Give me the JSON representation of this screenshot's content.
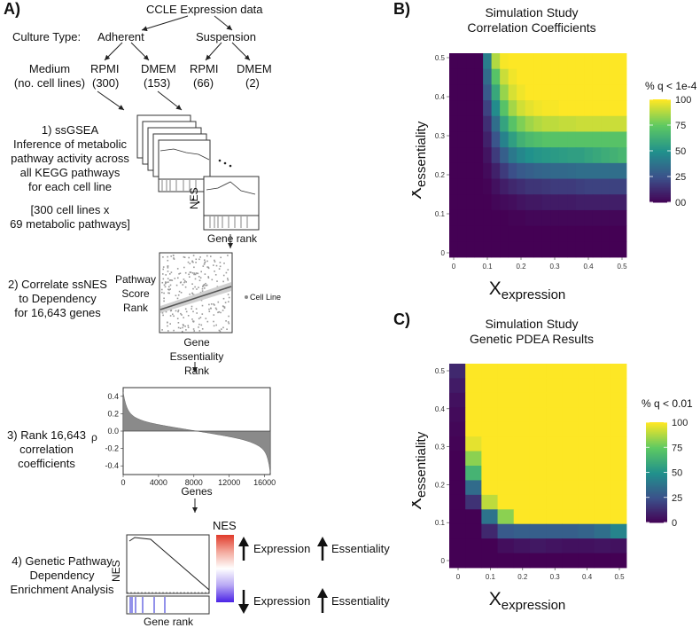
{
  "panel_a": {
    "letter": "A)",
    "ccle_title": "CCLE Expression data",
    "culture_type_label": "Culture Type:",
    "adherent": "Adherent",
    "suspension": "Suspension",
    "medium_label": "Medium",
    "cell_lines_label": "(no. cell lines)",
    "media": [
      {
        "name": "RPMI",
        "count": "(300)"
      },
      {
        "name": "DMEM",
        "count": "(153)"
      },
      {
        "name": "RPMI",
        "count": "(66)"
      },
      {
        "name": "DMEM",
        "count": "(2)"
      }
    ],
    "step1": [
      "1) ssGSEA",
      "Inference of metabolic",
      "pathway activity across",
      "all KEGG pathways",
      "for each cell line"
    ],
    "step1_matrix": [
      "[300 cell lines x",
      "69 metabolic pathways]"
    ],
    "nes_label": "NES",
    "gene_rank_label": "Gene rank",
    "step2": [
      "2) Correlate ssNES",
      "to Dependency",
      "for 16,643 genes"
    ],
    "pathway_score_rank": [
      "Pathway",
      "Score",
      "Rank"
    ],
    "cell_line_legend": "Cell Line",
    "gene_essentiality_rank": [
      "Gene",
      "Essentiality",
      "Rank"
    ],
    "step3": [
      "3) Rank 16,643",
      "correlation",
      "coefficients"
    ],
    "rho_label": "ρ",
    "genes_label": "Genes",
    "step4": [
      "4) Genetic Pathway",
      "Dependency",
      "Enrichment Analysis"
    ],
    "nes_colorbar_title": "NES",
    "expression_label": "Expression",
    "essentiality_label": "Essentiality",
    "bottom_gene_rank": "Gene rank",
    "nes_axis": "NES"
  },
  "panel_b": {
    "letter": "B)",
    "title": [
      "Simulation Study",
      "Correlation Coefficients"
    ],
    "legend_title": "% q < 1e-4",
    "legend_ticks": [
      "100",
      "75",
      "50",
      "25",
      "00"
    ]
  },
  "panel_c": {
    "letter": "C)",
    "title": [
      "Simulation Study",
      "Genetic PDEA Results"
    ],
    "legend_title": "% q < 0.01",
    "legend_ticks": [
      "100",
      "75",
      "50",
      "25",
      "0"
    ]
  },
  "heatmap_axes": {
    "x_main": "X",
    "x_sub": "expression",
    "y_main": "X",
    "y_sub": "essentiality",
    "ticks": [
      "0",
      "0.1",
      "0.2",
      "0.3",
      "0.4",
      "0.5"
    ]
  },
  "chart_data": [
    {
      "type": "bar",
      "title": "",
      "xlabel": "Genes",
      "ylabel": "ρ",
      "xlim": [
        0,
        16643
      ],
      "ylim": [
        -0.5,
        0.5
      ],
      "x_ticks": [
        "0",
        "4000",
        "8000",
        "12000",
        "16000"
      ],
      "y_ticks": [
        "0.4",
        "0.2",
        "0.0",
        "-0.2",
        "-0.4"
      ],
      "shape": "sorted correlation coefficients, from about 0.45 down to about -0.5"
    },
    {
      "type": "heatmap",
      "title": "Simulation Study Correlation Coefficients",
      "xlabel": "Xexpression",
      "ylabel": "Xessentiality",
      "legend": "% q < 1e-4",
      "scale": [
        0,
        100
      ],
      "axis_values": [
        0,
        0.025,
        0.05,
        0.075,
        0.1,
        0.125,
        0.15,
        0.175,
        0.2,
        0.225,
        0.25,
        0.275,
        0.3,
        0.325,
        0.35,
        0.375,
        0.4,
        0.425,
        0.45,
        0.475,
        0.5
      ],
      "rows_top_to_bottom": [
        [
          0,
          0,
          0,
          0,
          42,
          88,
          99,
          100,
          100,
          100,
          100,
          100,
          100,
          100,
          100,
          100,
          100,
          100,
          100,
          100,
          100
        ],
        [
          0,
          0,
          0,
          0,
          35,
          72,
          92,
          98,
          100,
          100,
          100,
          100,
          100,
          100,
          100,
          100,
          100,
          100,
          100,
          100,
          100
        ],
        [
          0,
          0,
          0,
          0,
          28,
          60,
          84,
          94,
          98,
          100,
          100,
          100,
          100,
          100,
          100,
          100,
          100,
          100,
          100,
          100,
          100
        ],
        [
          0,
          0,
          0,
          0,
          20,
          48,
          72,
          86,
          93,
          96,
          98,
          99,
          99,
          100,
          100,
          100,
          100,
          100,
          100,
          100,
          100
        ],
        [
          0,
          0,
          0,
          0,
          14,
          36,
          58,
          72,
          80,
          85,
          88,
          90,
          90,
          91,
          91,
          92,
          92,
          92,
          92,
          92,
          92
        ],
        [
          0,
          0,
          0,
          0,
          10,
          26,
          44,
          56,
          64,
          68,
          70,
          72,
          72,
          72,
          72,
          72,
          72,
          72,
          72,
          72,
          72
        ],
        [
          0,
          0,
          0,
          0,
          6,
          18,
          30,
          40,
          46,
          50,
          52,
          53,
          54,
          55,
          56,
          56,
          58,
          60,
          62,
          64,
          66
        ],
        [
          0,
          0,
          0,
          0,
          3,
          10,
          18,
          24,
          28,
          30,
          32,
          33,
          34,
          34,
          35,
          36,
          36,
          36,
          36,
          36,
          36
        ],
        [
          0,
          0,
          0,
          0,
          1,
          5,
          9,
          12,
          14,
          16,
          16,
          17,
          18,
          18,
          18,
          19,
          20,
          20,
          20,
          20,
          20
        ],
        [
          0,
          0,
          0,
          0,
          0,
          2,
          3,
          4,
          6,
          7,
          7,
          8,
          8,
          8,
          8,
          9,
          9,
          9,
          9,
          9,
          9
        ],
        [
          0,
          0,
          0,
          0,
          0,
          0,
          0,
          1,
          1,
          2,
          2,
          2,
          2,
          2,
          2,
          2,
          2,
          2,
          2,
          2,
          2
        ],
        [
          0,
          0,
          0,
          0,
          0,
          0,
          0,
          0,
          0,
          0,
          0,
          0,
          0,
          0,
          0,
          0,
          0,
          0,
          0,
          0,
          0
        ],
        [
          0,
          0,
          0,
          0,
          0,
          0,
          0,
          0,
          0,
          0,
          0,
          0,
          0,
          0,
          0,
          0,
          0,
          0,
          0,
          0,
          0
        ]
      ]
    },
    {
      "type": "heatmap",
      "title": "Simulation Study Genetic PDEA Results",
      "xlabel": "Xexpression",
      "ylabel": "Xessentiality",
      "legend": "% q < 0.01",
      "scale": [
        0,
        100
      ],
      "axis_values": [
        0,
        0.05,
        0.1,
        0.15,
        0.2,
        0.25,
        0.3,
        0.35,
        0.4,
        0.45,
        0.5
      ],
      "rows_top_to_bottom": [
        [
          12,
          100,
          100,
          100,
          100,
          100,
          100,
          100,
          100,
          100,
          100
        ],
        [
          8,
          100,
          100,
          100,
          100,
          100,
          100,
          100,
          100,
          100,
          100
        ],
        [
          5,
          100,
          100,
          100,
          100,
          100,
          100,
          100,
          100,
          100,
          100
        ],
        [
          3,
          100,
          100,
          100,
          100,
          100,
          100,
          100,
          100,
          100,
          100
        ],
        [
          2,
          100,
          100,
          100,
          100,
          100,
          100,
          100,
          100,
          100,
          100
        ],
        [
          1,
          96,
          100,
          100,
          100,
          100,
          100,
          100,
          100,
          100,
          100
        ],
        [
          0,
          82,
          100,
          100,
          100,
          100,
          100,
          100,
          100,
          100,
          100
        ],
        [
          0,
          65,
          100,
          100,
          100,
          100,
          100,
          100,
          100,
          100,
          100
        ],
        [
          0,
          35,
          100,
          100,
          100,
          100,
          100,
          100,
          100,
          100,
          100
        ],
        [
          0,
          15,
          90,
          100,
          100,
          100,
          100,
          100,
          100,
          100,
          100
        ],
        [
          0,
          0,
          38,
          82,
          100,
          100,
          100,
          100,
          100,
          100,
          100
        ],
        [
          0,
          0,
          12,
          28,
          30,
          30,
          30,
          30,
          32,
          36,
          45
        ],
        [
          0,
          0,
          0,
          4,
          6,
          7,
          6,
          5,
          5,
          6,
          5
        ],
        [
          0,
          0,
          0,
          0,
          0,
          0,
          0,
          0,
          0,
          0,
          0
        ]
      ]
    }
  ]
}
